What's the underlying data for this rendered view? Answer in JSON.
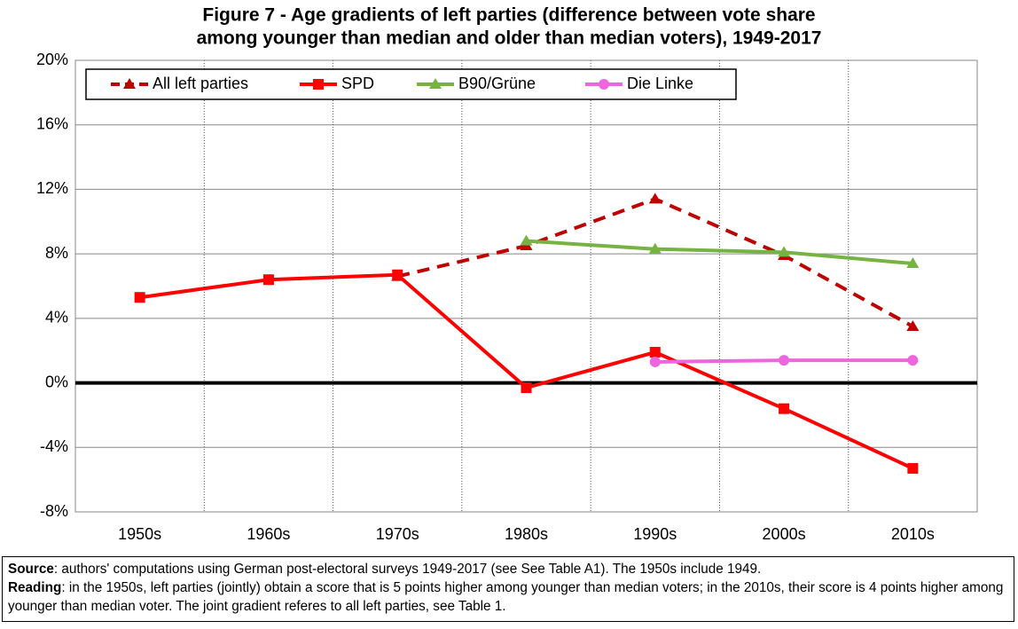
{
  "chart_data": {
    "type": "line",
    "title": [
      "Figure 7 - Age gradients of left parties (difference between vote share",
      "among younger than median and older than median voters), 1949-2017"
    ],
    "categories": [
      "1950s",
      "1960s",
      "1970s",
      "1980s",
      "1990s",
      "2000s",
      "2010s"
    ],
    "series": [
      {
        "name": "All left parties",
        "color": "#c00000",
        "marker": "triangle",
        "dashed": true,
        "values": [
          null,
          null,
          6.6,
          8.5,
          11.4,
          7.9,
          3.5
        ]
      },
      {
        "name": "SPD",
        "color": "#ff0000",
        "marker": "square",
        "dashed": false,
        "values": [
          5.3,
          6.4,
          6.7,
          -0.3,
          1.9,
          -1.6,
          -5.3
        ]
      },
      {
        "name": "B90/Grüne",
        "color": "#77b343",
        "marker": "triangle",
        "dashed": false,
        "values": [
          null,
          null,
          null,
          8.8,
          8.3,
          8.1,
          7.4
        ]
      },
      {
        "name": "Die Linke",
        "color": "#ee66dd",
        "marker": "circle",
        "dashed": false,
        "values": [
          null,
          null,
          null,
          null,
          1.3,
          1.4,
          1.4
        ]
      }
    ],
    "ylim": [
      -8,
      20
    ],
    "yticks": [
      {
        "value": -8,
        "label": "-8%"
      },
      {
        "value": -4,
        "label": "-4%"
      },
      {
        "value": 0,
        "label": "0%"
      },
      {
        "value": 4,
        "label": "4%"
      },
      {
        "value": 8,
        "label": "8%"
      },
      {
        "value": 12,
        "label": "12%"
      },
      {
        "value": 16,
        "label": "16%"
      },
      {
        "value": 20,
        "label": "20%"
      }
    ],
    "grid": true,
    "legend": "top-left"
  },
  "notes": [
    {
      "label": "Source",
      "text": ": authors' computations using German post-electoral surveys 1949-2017 (see See Table A1). The 1950s include 1949."
    },
    {
      "label": "Reading",
      "text": ": in the 1950s, left parties (jointly) obtain a score that is 5 points higher among younger than median voters; in the 2010s, their score is 4 points higher among younger than median voter. The joint gradient referes to all left parties, see Table 1."
    }
  ]
}
